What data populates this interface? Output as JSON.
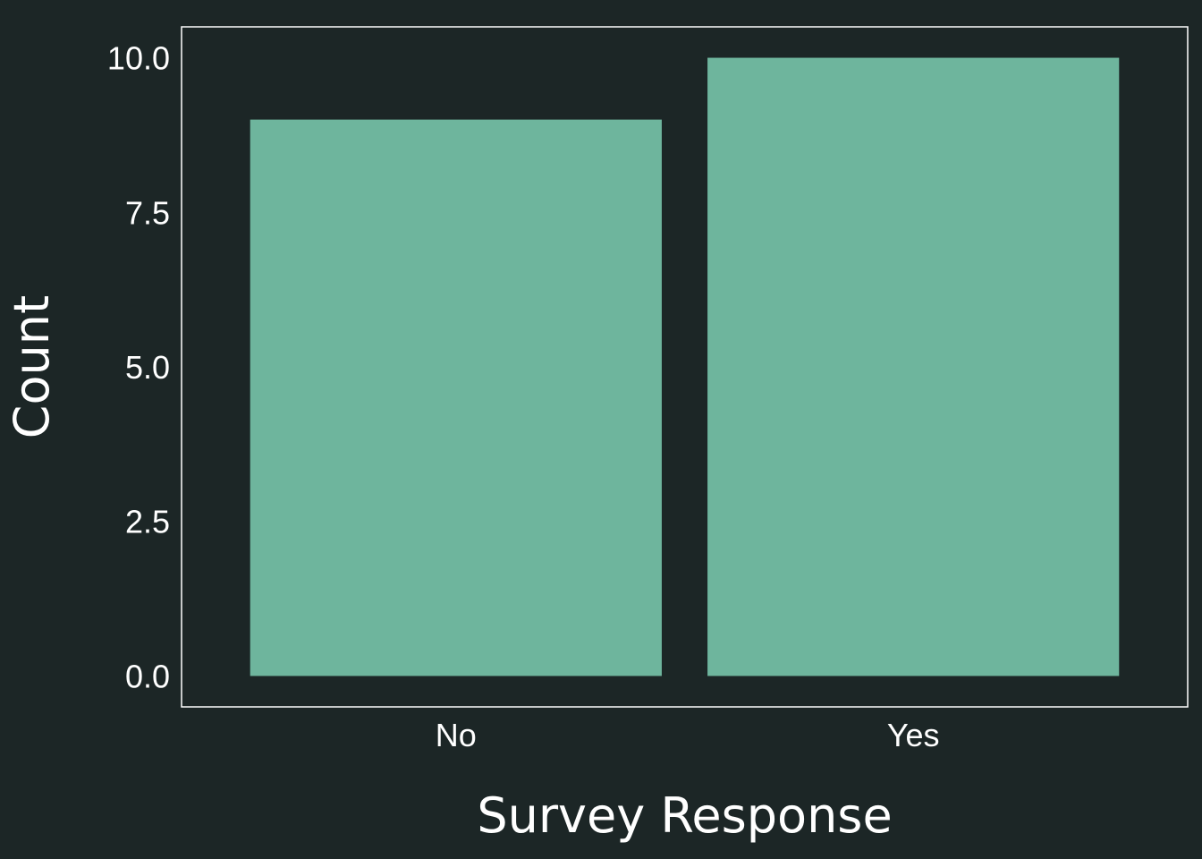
{
  "chart_data": {
    "type": "bar",
    "categories": [
      "No",
      "Yes"
    ],
    "values": [
      9,
      10
    ],
    "xlabel": "Survey Response",
    "ylabel": "Count",
    "ylim": [
      -0.5,
      10.5
    ],
    "yticks": [
      0.0,
      2.5,
      5.0,
      7.5,
      10.0
    ],
    "ytick_labels": [
      "0.0",
      "2.5",
      "5.0",
      "7.5",
      "10.0"
    ],
    "grid": false,
    "legend": "none"
  },
  "colors": {
    "background": "#1c2626",
    "bar": "#6eb59d",
    "frame": "#ffffff",
    "text": "#ffffff"
  }
}
